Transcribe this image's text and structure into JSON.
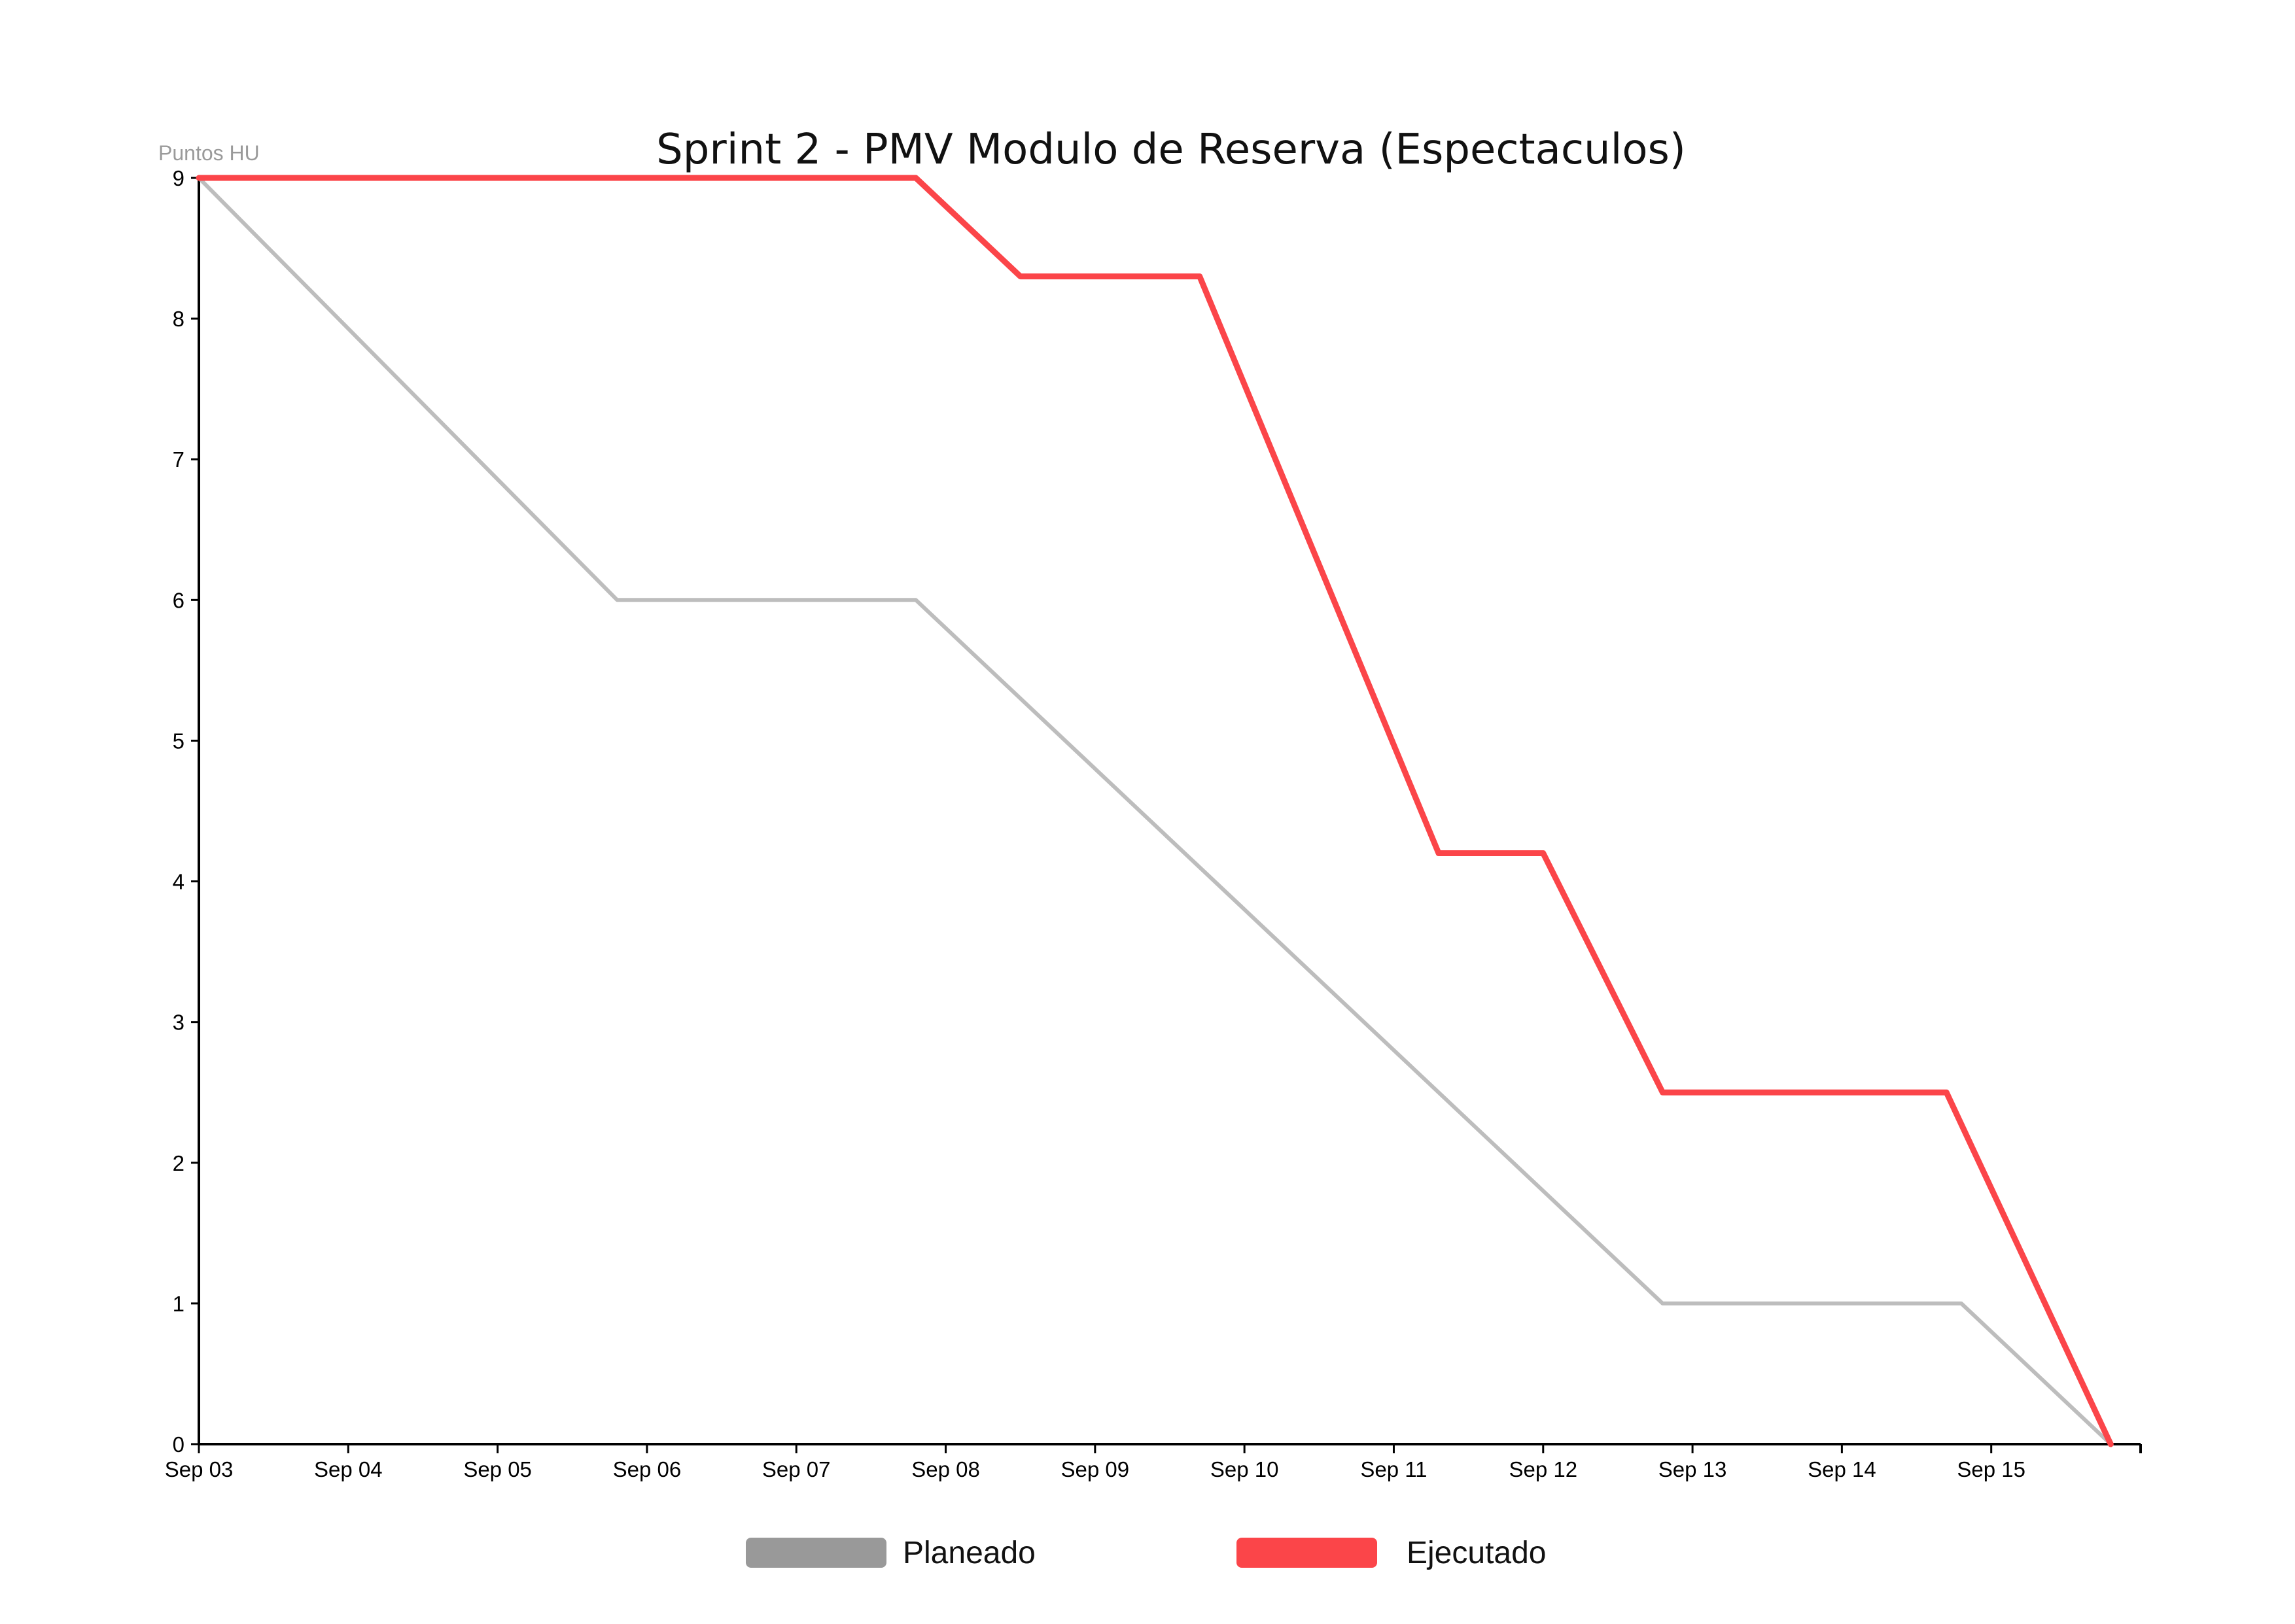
{
  "chart_data": {
    "type": "line",
    "title": "Sprint 2 - PMV Modulo de Reserva (Espectaculos)",
    "ylabel": "Puntos HU",
    "xlabel": "",
    "ylim": [
      0,
      9
    ],
    "y_ticks": [
      "0",
      "1",
      "2",
      "3",
      "4",
      "5",
      "6",
      "7",
      "8",
      "9"
    ],
    "x_ticks": [
      "Sep 03",
      "Sep 04",
      "Sep 05",
      "Sep 06",
      "Sep 07",
      "Sep 08",
      "Sep 09",
      "Sep 10",
      "Sep 11",
      "Sep 12",
      "Sep 13",
      "Sep 14",
      "Sep 15"
    ],
    "x_range": [
      "Sep 03",
      "Sep 16"
    ],
    "grid": false,
    "legend_position": "bottom-center",
    "series": [
      {
        "name": "Planeado",
        "color": "#bdbdbd",
        "legend_color": "#999999",
        "points": [
          {
            "x": "Sep 03",
            "y": 9
          },
          {
            "x": "Sep 05.8",
            "y": 6
          },
          {
            "x": "Sep 07.8",
            "y": 6
          },
          {
            "x": "Sep 12.8",
            "y": 1
          },
          {
            "x": "Sep 14.8",
            "y": 1
          },
          {
            "x": "Sep 15.8",
            "y": 0
          }
        ]
      },
      {
        "name": "Ejecutado",
        "color": "#fb4549",
        "legend_color": "#fb4549",
        "points": [
          {
            "x": "Sep 03",
            "y": 9
          },
          {
            "x": "Sep 07.8",
            "y": 9
          },
          {
            "x": "Sep 08.5",
            "y": 8.3
          },
          {
            "x": "Sep 09.7",
            "y": 8.3
          },
          {
            "x": "Sep 11.3",
            "y": 4.2
          },
          {
            "x": "Sep 12",
            "y": 4.2
          },
          {
            "x": "Sep 12.8",
            "y": 2.5
          },
          {
            "x": "Sep 14.7",
            "y": 2.5
          },
          {
            "x": "Sep 15.8",
            "y": 0
          }
        ]
      }
    ]
  }
}
